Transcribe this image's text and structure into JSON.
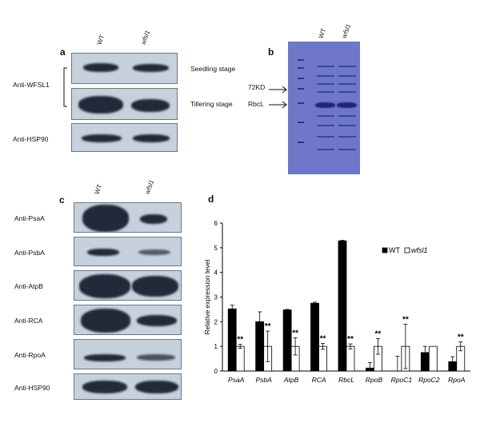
{
  "panel_a": {
    "letter": "a",
    "col_labels": [
      "WT",
      "wfsl1"
    ],
    "row_labels": [
      "Anti-WFSL1",
      "Anti-HSP90"
    ],
    "stage_labels": [
      "Seedling stage",
      "Tillering stage"
    ]
  },
  "panel_b": {
    "letter": "b",
    "col_labels": [
      "WT",
      "wfsl1"
    ],
    "markers": [
      "72KD",
      "RbcL"
    ]
  },
  "panel_c": {
    "letter": "c",
    "col_labels": [
      "WT",
      "wfsl1"
    ],
    "row_labels": [
      "Anti-PsaA",
      "Anti-PsbA",
      "Anti-AtpB",
      "Anti-RCA",
      "Anti-RpoA",
      "Anti-HSP90"
    ]
  },
  "chart_data": {
    "type": "bar",
    "panel_letter": "d",
    "ylabel": "Relative expression level",
    "xlabel": "",
    "ylim": [
      0,
      6
    ],
    "yticks": [
      0,
      1,
      2,
      3,
      4,
      5,
      6
    ],
    "legend_placement": "top-right",
    "categories": [
      "PsaA",
      "PsbA",
      "AtpB",
      "RCA",
      "RbcL",
      "RpoB",
      "RpoC1",
      "RpoC2",
      "RpoA"
    ],
    "series": [
      {
        "name": "WT",
        "fill": "#000000",
        "values": [
          2.52,
          2.0,
          2.48,
          2.75,
          5.28,
          0.12,
          0.0,
          0.75,
          0.38
        ],
        "errors": [
          0.15,
          0.4,
          0.02,
          0.04,
          0.02,
          0.22,
          0.6,
          0.25,
          0.2
        ]
      },
      {
        "name": "wfsl1",
        "fill": "#ffffff",
        "values": [
          1.0,
          1.0,
          1.0,
          1.0,
          1.0,
          1.0,
          1.0,
          1.0,
          1.0
        ],
        "errors": [
          0.08,
          0.62,
          0.35,
          0.12,
          0.1,
          0.32,
          0.9,
          0.0,
          0.18
        ]
      }
    ],
    "significance": [
      "**",
      "**",
      "**",
      "**",
      "**",
      "**",
      "**",
      "",
      "**"
    ],
    "colors": {
      "axis": "#000000"
    }
  }
}
